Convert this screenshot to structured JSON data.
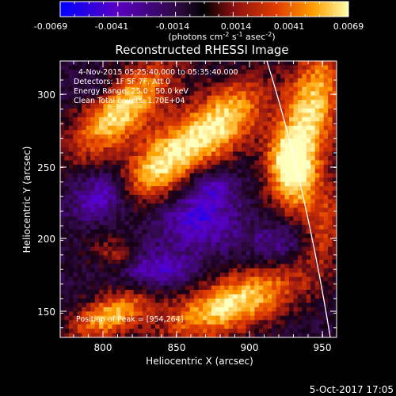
{
  "colorbar": {
    "tick_labels": [
      "-0.0069",
      "-0.0041",
      "-0.0014",
      "0.0014",
      "0.0041",
      "0.0069"
    ],
    "units_prefix": "(photons cm",
    "units_exp1": "-2",
    "units_mid": " s",
    "units_exp2": "-1",
    "units_mid2": " asec",
    "units_exp3": "-2",
    "units_suffix": ")",
    "colors": [
      "#0000ff",
      "#6a00a8",
      "#3a0a4a",
      "#000000",
      "#8a1010",
      "#e33a00",
      "#ffa000",
      "#ffff80"
    ]
  },
  "title": "Reconstructed RHESSI Image",
  "annotations": {
    "time_range": "4-Nov-2015 05:25:40.000 to 05:35:40.000",
    "detectors": "Detectors: 1F 5F 7F, Att 0",
    "energy": "Energy Range: 25.0 - 50.0 keV",
    "method": "Clean     Total counts: 1.70E+04",
    "peak": "Position of Peak = [954,264]"
  },
  "axes": {
    "xlabel": "Heliocentric X (arcsec)",
    "ylabel": "Heliocentric Y (arcsec)",
    "x_ticks": [
      "800",
      "850",
      "900",
      "950"
    ],
    "y_ticks": [
      "300",
      "250",
      "200",
      "150"
    ],
    "xlim": [
      768,
      962
    ],
    "ylim": [
      133,
      327
    ]
  },
  "footer": {
    "date": "5-Oct-2017 17:05"
  }
}
